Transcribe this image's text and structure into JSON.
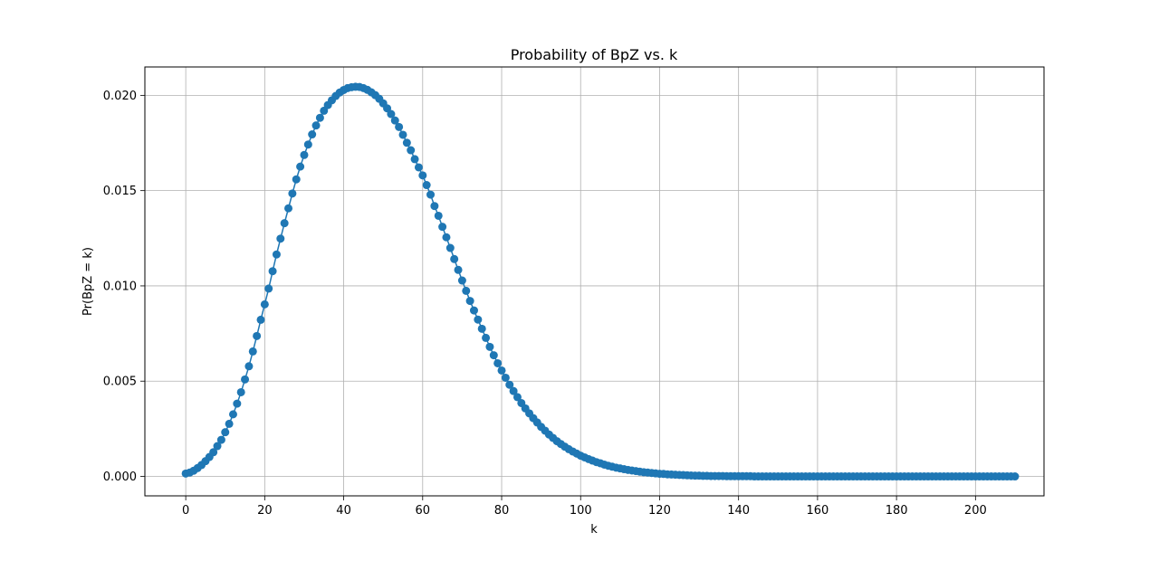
{
  "chart_data": {
    "type": "line",
    "title": "Probability of BpZ vs. k",
    "xlabel": "k",
    "ylabel": "Pr(BpZ = k)",
    "xlim": [
      -10.35,
      217.35
    ],
    "ylim": [
      -0.00102,
      0.02149
    ],
    "xticks": [
      0,
      20,
      40,
      60,
      80,
      100,
      120,
      140,
      160,
      180,
      200
    ],
    "xtick_labels": [
      "0",
      "20",
      "40",
      "60",
      "80",
      "100",
      "120",
      "140",
      "160",
      "180",
      "200"
    ],
    "yticks": [
      0.0,
      0.005,
      0.01,
      0.015,
      0.02
    ],
    "ytick_labels": [
      "0.000",
      "0.005",
      "0.010",
      "0.015",
      "0.020"
    ],
    "grid": true,
    "legend": "none",
    "series_color": "#1f77b4",
    "series": [
      {
        "x_start": 0,
        "x_step": 1,
        "values": [
          0.00015,
          0.0002,
          0.0003,
          0.00044,
          0.0006,
          0.0008,
          0.00102,
          0.00127,
          0.00159,
          0.00192,
          0.00232,
          0.00276,
          0.00326,
          0.00382,
          0.00442,
          0.00509,
          0.00578,
          0.00656,
          0.00737,
          0.00822,
          0.00903,
          0.00986,
          0.01077,
          0.01165,
          0.01248,
          0.01329,
          0.01407,
          0.01485,
          0.01559,
          0.01626,
          0.01687,
          0.01742,
          0.01795,
          0.01842,
          0.01882,
          0.01919,
          0.01949,
          0.01974,
          0.01997,
          0.02015,
          0.02028,
          0.02038,
          0.02043,
          0.02045,
          0.02044,
          0.02038,
          0.02029,
          0.02016,
          0.02001,
          0.01982,
          0.01958,
          0.01932,
          0.01902,
          0.01868,
          0.01834,
          0.01793,
          0.01751,
          0.01712,
          0.01665,
          0.01622,
          0.0158,
          0.01529,
          0.01479,
          0.01419,
          0.01368,
          0.0131,
          0.01255,
          0.01199,
          0.01141,
          0.01084,
          0.01028,
          0.00974,
          0.00921,
          0.00871,
          0.00823,
          0.00775,
          0.00727,
          0.0068,
          0.00636,
          0.00594,
          0.00556,
          0.00518,
          0.00481,
          0.00448,
          0.00416,
          0.00385,
          0.00357,
          0.00331,
          0.00306,
          0.00283,
          0.0026,
          0.0024,
          0.0022,
          0.00202,
          0.00185,
          0.0017,
          0.00156,
          0.00143,
          0.00131,
          0.0012,
          0.00109,
          0.001,
          0.00091,
          0.00083,
          0.00075,
          0.00069,
          0.00062,
          0.00056,
          0.00051,
          0.00046,
          0.00042,
          0.00038,
          0.00034,
          0.00031,
          0.00028,
          0.00025,
          0.00022,
          0.0002,
          0.00018,
          0.00016,
          0.00014,
          0.00013,
          0.00011,
          0.0001,
          9e-05,
          8e-05,
          7e-05,
          6e-05,
          5e-05,
          4e-05,
          4e-05,
          3e-05,
          3e-05,
          2e-05,
          2e-05,
          2e-05,
          2e-05,
          1e-05,
          1e-05,
          1e-05,
          1e-05,
          1e-05,
          1e-05,
          1e-05,
          0.0,
          0.0,
          0.0,
          0.0,
          0.0,
          0.0,
          0.0,
          0.0,
          0.0,
          0.0,
          0.0,
          0.0,
          0.0,
          0.0,
          0.0,
          0.0,
          0.0,
          0.0,
          0.0,
          0.0,
          0.0,
          0.0,
          0.0,
          0.0,
          0.0,
          0.0,
          0.0,
          0.0,
          0.0,
          0.0,
          0.0,
          0.0,
          0.0,
          0.0,
          0.0,
          0.0,
          0.0,
          0.0,
          0.0,
          0.0,
          0.0,
          0.0,
          0.0,
          0.0,
          0.0,
          0.0,
          0.0,
          0.0,
          0.0,
          0.0,
          0.0,
          0.0,
          0.0,
          0.0,
          0.0,
          0.0,
          0.0,
          0.0,
          0.0,
          0.0,
          0.0,
          0.0,
          0.0,
          0.0,
          0.0,
          0.0,
          0.0
        ]
      }
    ]
  }
}
